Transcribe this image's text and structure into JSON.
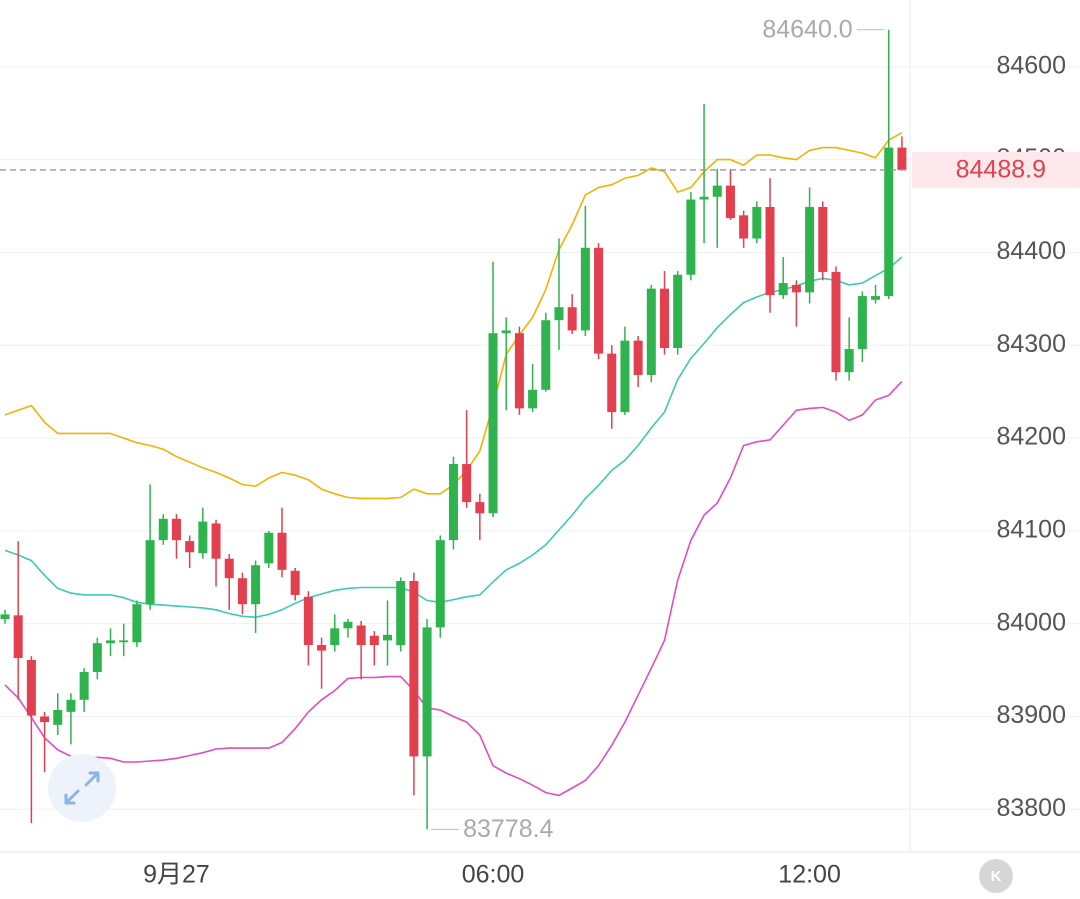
{
  "chart_data": {
    "type": "candlestick",
    "categories": [
      null,
      null,
      null,
      null,
      null,
      null,
      null,
      null,
      null,
      null,
      null,
      null,
      null,
      "9月27",
      null,
      null,
      null,
      null,
      null,
      null,
      null,
      null,
      null,
      null,
      null,
      null,
      null,
      null,
      null,
      null,
      null,
      null,
      null,
      null,
      null,
      null,
      null,
      "06:00",
      null,
      null,
      null,
      null,
      null,
      null,
      null,
      null,
      null,
      null,
      null,
      null,
      null,
      null,
      null,
      null,
      null,
      null,
      null,
      null,
      null,
      null,
      null,
      "12:00",
      null,
      null,
      null,
      null,
      null,
      null,
      null
    ],
    "series": [
      {
        "name": "K",
        "up_color": "#2fb34e",
        "down_color": "#e2404f",
        "open": [
          84005,
          84009,
          83961,
          83900,
          83891,
          83905,
          83918,
          83948,
          83979,
          83980,
          83980,
          84021,
          84090,
          84113,
          84089,
          84076,
          84108,
          84070,
          84049,
          84021,
          84065,
          84098,
          84057,
          84029,
          83977,
          83977,
          83995,
          83998,
          83987,
          83982,
          83977,
          84046,
          83857,
          83996,
          84090,
          84172,
          84131,
          84119,
          84313,
          84313,
          84232,
          84252,
          84327,
          84341,
          84316,
          84405,
          84291,
          84228,
          84305,
          84268,
          84361,
          84297,
          84376,
          84457,
          84460,
          84472,
          84440,
          84415,
          84449,
          84354,
          84365,
          84357,
          84449,
          84379,
          84271,
          84296,
          84349,
          84353,
          84513
        ],
        "high": [
          84015,
          84089,
          83965,
          83905,
          83925,
          83925,
          83952,
          83985,
          83995,
          84000,
          84025,
          84150,
          84118,
          84118,
          84095,
          84125,
          84112,
          84075,
          84055,
          84068,
          84100,
          84125,
          84060,
          84035,
          83985,
          84010,
          84005,
          84003,
          83992,
          84025,
          84050,
          84055,
          84005,
          84095,
          84180,
          84230,
          84140,
          84390,
          84330,
          84320,
          84280,
          84335,
          84415,
          84355,
          84450,
          84410,
          84300,
          84320,
          84310,
          84365,
          84380,
          84380,
          84465,
          84560,
          84490,
          84490,
          84445,
          84455,
          84480,
          84395,
          84370,
          84470,
          84455,
          84385,
          84330,
          84358,
          84365,
          84640,
          84525
        ],
        "low": [
          84000,
          83918,
          83785,
          83840,
          83880,
          83870,
          83905,
          83940,
          83965,
          83965,
          83975,
          84015,
          84085,
          84070,
          84060,
          84070,
          84040,
          84015,
          84010,
          83990,
          84060,
          84050,
          84025,
          83955,
          83930,
          83970,
          83985,
          83940,
          83955,
          83955,
          83970,
          83815,
          83778.4,
          83985,
          84080,
          84125,
          84090,
          84115,
          84230,
          84225,
          84228,
          84250,
          84295,
          84312,
          84310,
          84285,
          84210,
          84225,
          84255,
          84260,
          84290,
          84290,
          84370,
          84410,
          84405,
          84435,
          84405,
          84410,
          84335,
          84350,
          84320,
          84345,
          84370,
          84262,
          84262,
          84282,
          84345,
          84350,
          84488.9
        ],
        "close": [
          84010,
          83963,
          83901,
          83894,
          83907,
          83918,
          83948,
          83979,
          83982,
          83982,
          84021,
          84090,
          84113,
          84090,
          84077,
          84110,
          84070,
          84049,
          84021,
          84063,
          84098,
          84058,
          84031,
          83977,
          83971,
          83995,
          84002,
          83977,
          83977,
          83988,
          84046,
          83857,
          83996,
          84090,
          84172,
          84131,
          84119,
          84313,
          84316,
          84232,
          84252,
          84327,
          84341,
          84316,
          84405,
          84291,
          84228,
          84305,
          84268,
          84361,
          84297,
          84376,
          84457,
          84460,
          84472,
          84437,
          84415,
          84449,
          84354,
          84367,
          84357,
          84449,
          84379,
          84271,
          84296,
          84353,
          84353,
          84513,
          84488.9
        ]
      },
      {
        "name": "UP",
        "color": "#f0b400",
        "values": [
          84225,
          84230,
          84235,
          84217,
          84205,
          84205,
          84205,
          84205,
          84205,
          84200,
          84195,
          84192,
          84188,
          84180,
          84174,
          84168,
          84163,
          84157,
          84150,
          84148,
          84157,
          84163,
          84160,
          84155,
          84145,
          84140,
          84136,
          84135,
          84135,
          84135,
          84136,
          84145,
          84140,
          84140,
          84150,
          84165,
          84186,
          84235,
          84290,
          84311,
          84330,
          84360,
          84403,
          84430,
          84462,
          84470,
          84473,
          84480,
          84483,
          84491,
          84487,
          84465,
          84470,
          84487,
          84500,
          84500,
          84494,
          84505,
          84505,
          84502,
          84500,
          84510,
          84513,
          84513,
          84510,
          84507,
          84502,
          84521,
          84529
        ]
      },
      {
        "name": "MB",
        "color": "#3ccab2",
        "values": [
          84079,
          84074,
          84068,
          84052,
          84038,
          84033,
          84031,
          84031,
          84031,
          84028,
          84023,
          84021,
          84020,
          84019,
          84018,
          84017,
          84015,
          84011,
          84008,
          84007,
          84010,
          84015,
          84022,
          84028,
          84032,
          84036,
          84038,
          84039,
          84039,
          84039,
          84039,
          84034,
          84025,
          84023,
          84026,
          84029,
          84031,
          84045,
          84058,
          84065,
          84074,
          84085,
          84101,
          84117,
          84135,
          84149,
          84165,
          84176,
          84192,
          84211,
          84228,
          84263,
          84286,
          84302,
          84319,
          84333,
          84346,
          84352,
          84357,
          84360,
          84364,
          84369,
          84372,
          84370,
          84365,
          84367,
          84375,
          84383,
          84395
        ]
      },
      {
        "name": "DN",
        "color": "#e24cc2",
        "values": [
          83934,
          83920,
          83899,
          83877,
          83864,
          83857,
          83856,
          83856,
          83855,
          83851,
          83851,
          83852,
          83853,
          83855,
          83858,
          83861,
          83865,
          83866,
          83866,
          83866,
          83866,
          83872,
          83887,
          83905,
          83918,
          83928,
          83941,
          83942,
          83942,
          83943,
          83943,
          83928,
          83909,
          83907,
          83900,
          83894,
          83880,
          83847,
          83839,
          83833,
          83826,
          83818,
          83815,
          83823,
          83831,
          83847,
          83869,
          83894,
          83923,
          83952,
          83982,
          84047,
          84090,
          84117,
          84130,
          84157,
          84192,
          84196,
          84198,
          84214,
          84230,
          84232,
          84233,
          84228,
          84219,
          84225,
          84241,
          84246,
          84261
        ]
      }
    ],
    "ylim": [
      83754,
      84672
    ],
    "yticks": [
      83800,
      83900,
      84000,
      84100,
      84200,
      84300,
      84400,
      84500,
      84600
    ],
    "grid": true,
    "annotations": {
      "high": {
        "value": 84640,
        "label": "84640.0"
      },
      "low": {
        "value": 83778.4,
        "label": "83778.4"
      },
      "last": {
        "value": 84488.9,
        "label": "84488.9"
      }
    },
    "kline_button": "K"
  }
}
